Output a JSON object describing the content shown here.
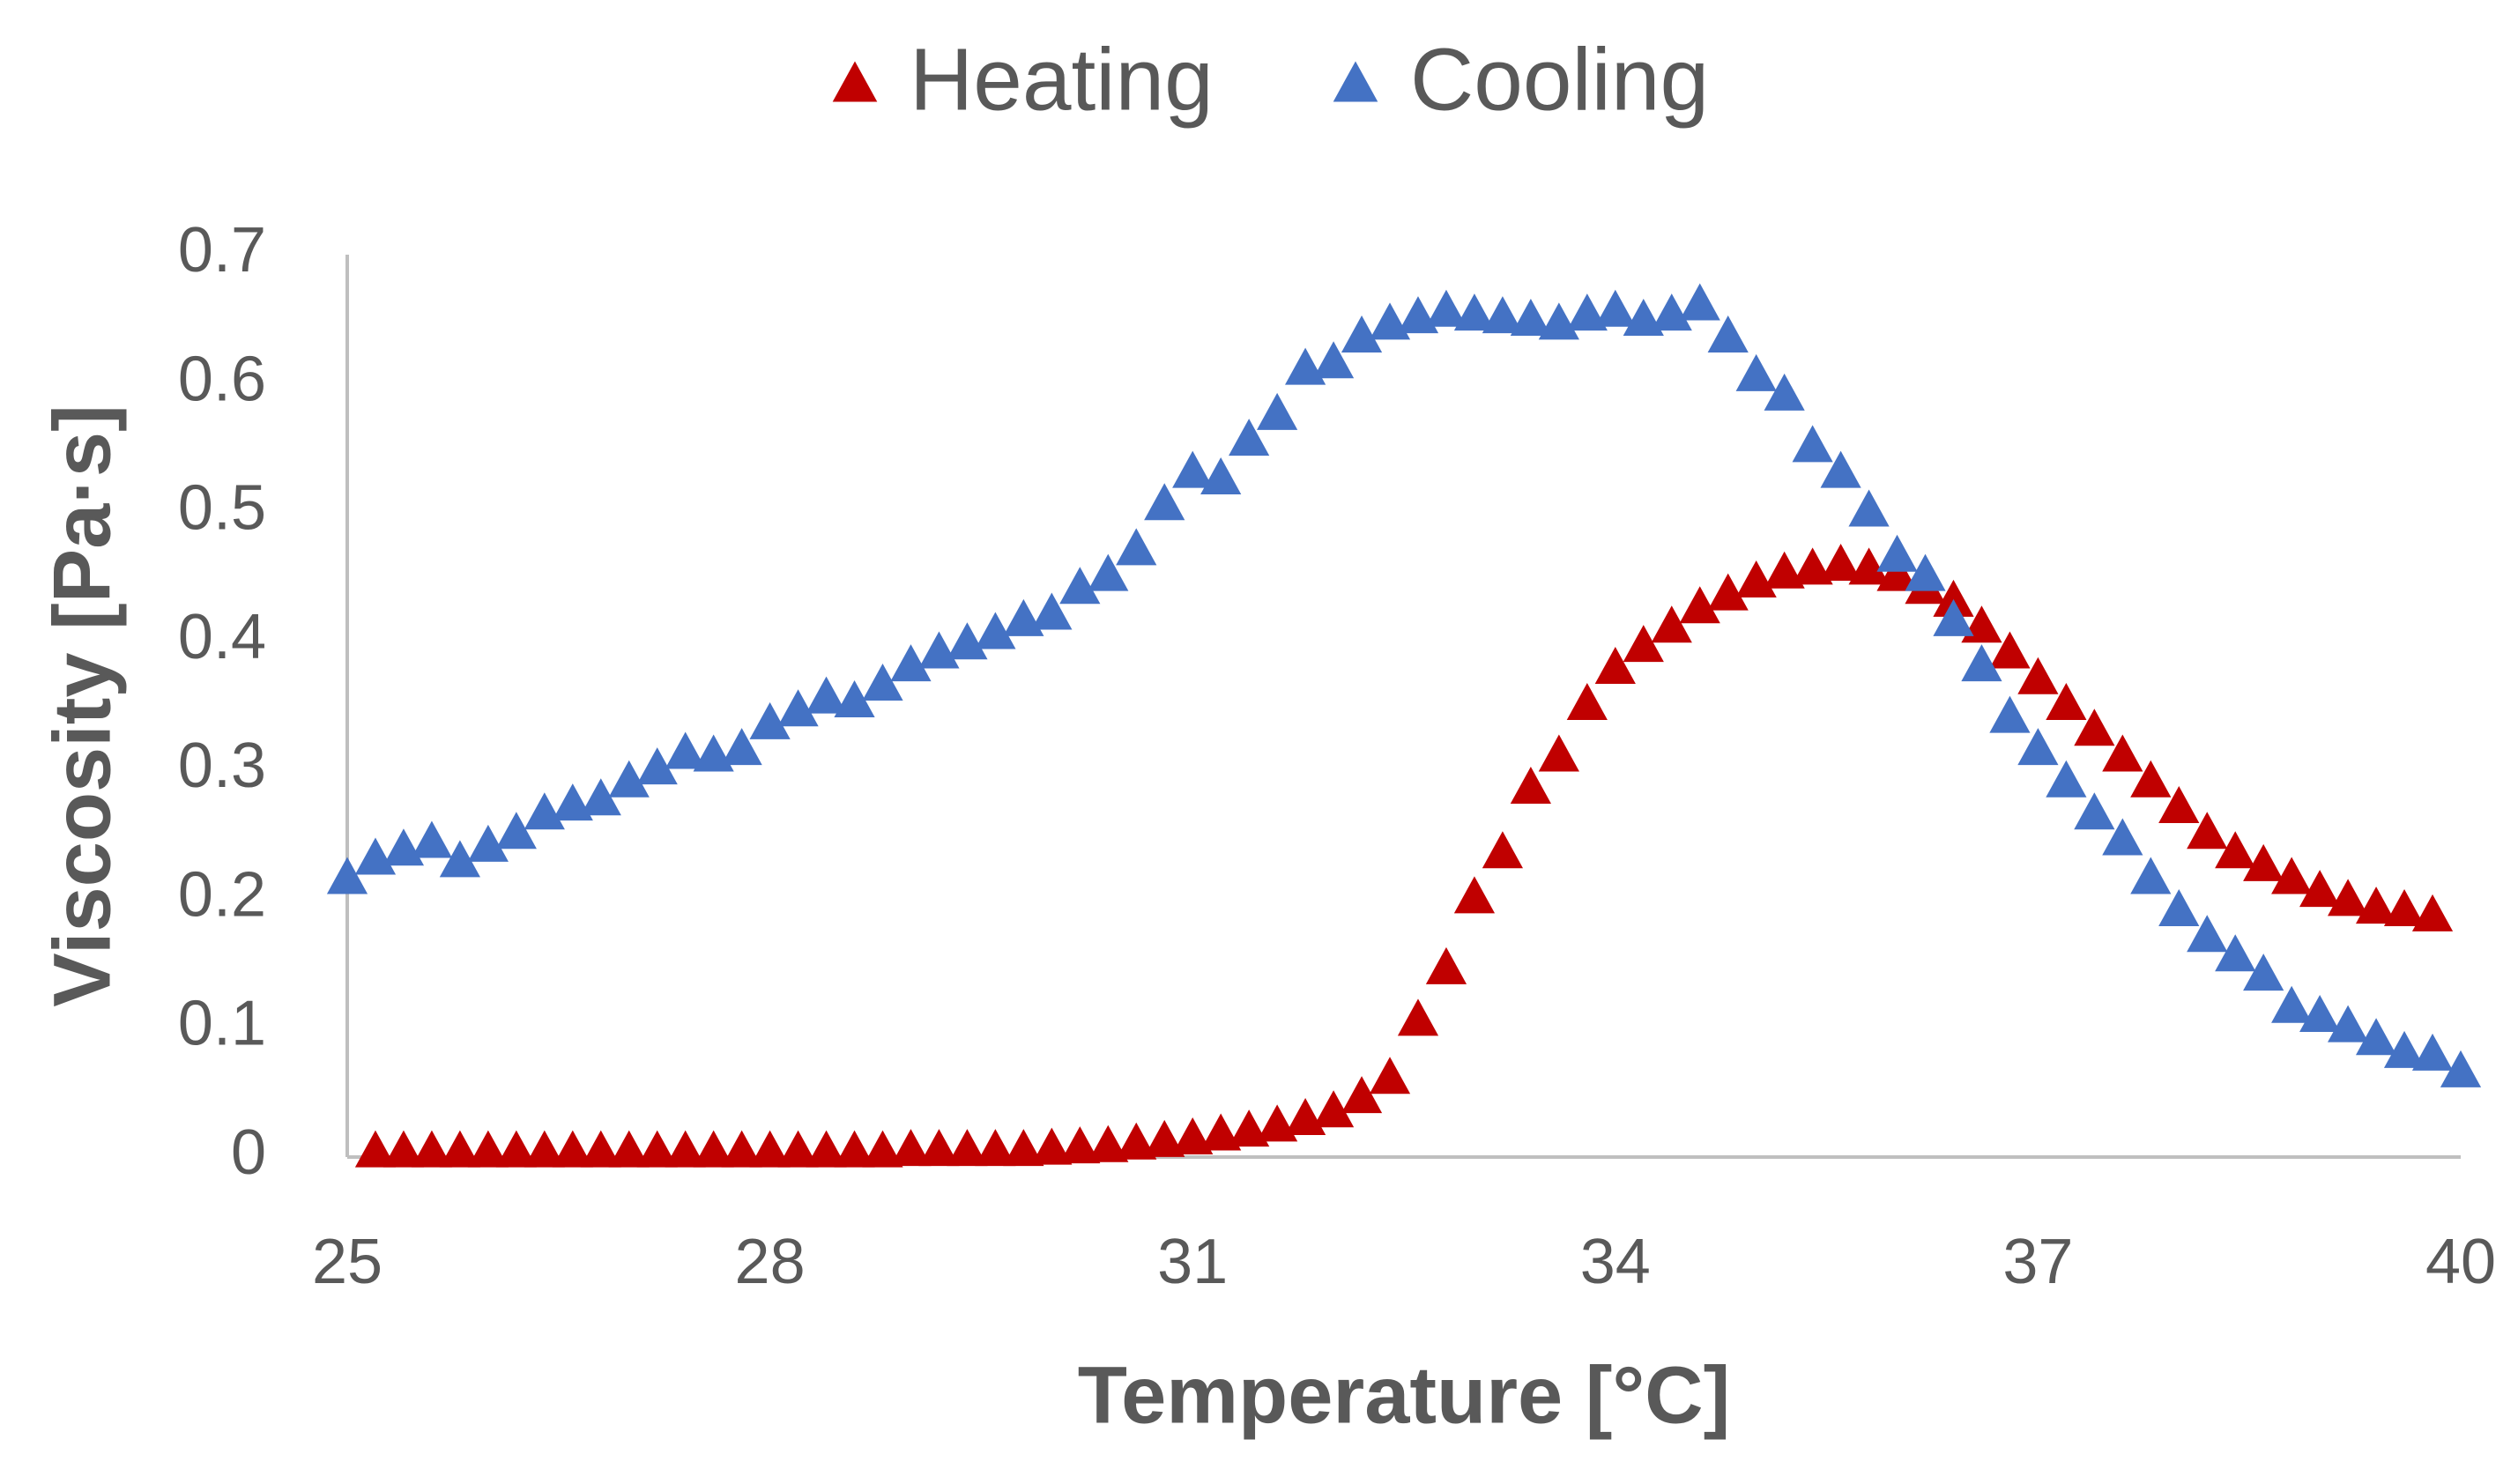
{
  "chart_data": {
    "type": "scatter",
    "x_label": "Temperature [°C]",
    "y_label": "Viscosity [Pa·s]",
    "xlim": [
      25,
      40
    ],
    "xticks": [
      25,
      28,
      31,
      34,
      37,
      40
    ],
    "ylim": [
      0,
      0.7
    ],
    "yticks": [
      0,
      0.1,
      0.2,
      0.3,
      0.4,
      0.5,
      0.6,
      0.7
    ],
    "grid": false,
    "legend": "top",
    "marker": "triangle",
    "series": [
      {
        "name": "Heating",
        "color": "#c00000",
        "x": [
          25.2,
          25.4,
          25.6,
          25.8,
          26,
          26.2,
          26.4,
          26.6,
          26.8,
          27,
          27.2,
          27.4,
          27.6,
          27.8,
          28,
          28.2,
          28.4,
          28.6,
          28.8,
          29,
          29.2,
          29.4,
          29.6,
          29.8,
          30,
          30.2,
          30.4,
          30.6,
          30.8,
          31,
          31.2,
          31.4,
          31.6,
          31.8,
          32,
          32.2,
          32.4,
          32.6,
          32.8,
          33,
          33.2,
          33.4,
          33.6,
          33.8,
          34,
          34.2,
          34.4,
          34.6,
          34.8,
          35,
          35.2,
          35.4,
          35.6,
          35.8,
          36,
          36.2,
          36.4,
          36.6,
          36.8,
          37,
          37.2,
          37.4,
          37.6,
          37.8,
          38,
          38.2,
          38.4,
          38.6,
          38.8,
          39,
          39.2,
          39.4,
          39.6,
          39.8
        ],
        "values": [
          0.003,
          0.003,
          0.003,
          0.003,
          0.003,
          0.003,
          0.003,
          0.003,
          0.003,
          0.003,
          0.003,
          0.003,
          0.003,
          0.003,
          0.003,
          0.003,
          0.003,
          0.003,
          0.003,
          0.004,
          0.004,
          0.004,
          0.004,
          0.004,
          0.005,
          0.006,
          0.007,
          0.009,
          0.011,
          0.013,
          0.016,
          0.019,
          0.023,
          0.028,
          0.034,
          0.045,
          0.06,
          0.105,
          0.145,
          0.2,
          0.235,
          0.285,
          0.31,
          0.35,
          0.378,
          0.395,
          0.41,
          0.425,
          0.435,
          0.445,
          0.452,
          0.455,
          0.458,
          0.455,
          0.45,
          0.44,
          0.43,
          0.41,
          0.39,
          0.37,
          0.35,
          0.33,
          0.31,
          0.29,
          0.27,
          0.25,
          0.235,
          0.225,
          0.215,
          0.205,
          0.198,
          0.192,
          0.19,
          0.186
        ]
      },
      {
        "name": "Cooling",
        "color": "#4472c4",
        "x": [
          25,
          25.2,
          25.4,
          25.6,
          25.8,
          26,
          26.2,
          26.4,
          26.6,
          26.8,
          27,
          27.2,
          27.4,
          27.6,
          27.8,
          28,
          28.2,
          28.4,
          28.6,
          28.8,
          29,
          29.2,
          29.4,
          29.6,
          29.8,
          30,
          30.2,
          30.4,
          30.6,
          30.8,
          31,
          31.2,
          31.4,
          31.6,
          31.8,
          32,
          32.2,
          32.4,
          32.6,
          32.8,
          33,
          33.2,
          33.4,
          33.6,
          33.8,
          34,
          34.2,
          34.4,
          34.6,
          34.8,
          35,
          35.2,
          35.4,
          35.6,
          35.8,
          36,
          36.2,
          36.4,
          36.6,
          36.8,
          37,
          37.2,
          37.4,
          37.6,
          37.8,
          38,
          38.2,
          38.4,
          38.6,
          38.8,
          39,
          39.2,
          39.4,
          39.6,
          39.8,
          40
        ],
        "values": [
          0.215,
          0.23,
          0.237,
          0.243,
          0.228,
          0.24,
          0.25,
          0.265,
          0.272,
          0.276,
          0.29,
          0.3,
          0.312,
          0.31,
          0.315,
          0.335,
          0.345,
          0.355,
          0.352,
          0.365,
          0.38,
          0.39,
          0.397,
          0.405,
          0.415,
          0.42,
          0.44,
          0.45,
          0.47,
          0.505,
          0.53,
          0.525,
          0.555,
          0.575,
          0.61,
          0.615,
          0.635,
          0.645,
          0.65,
          0.655,
          0.652,
          0.65,
          0.648,
          0.645,
          0.652,
          0.655,
          0.648,
          0.652,
          0.66,
          0.635,
          0.605,
          0.59,
          0.55,
          0.53,
          0.5,
          0.465,
          0.45,
          0.415,
          0.38,
          0.34,
          0.315,
          0.29,
          0.265,
          0.245,
          0.215,
          0.19,
          0.17,
          0.155,
          0.14,
          0.115,
          0.108,
          0.1,
          0.09,
          0.08,
          0.078,
          0.065
        ]
      }
    ]
  }
}
